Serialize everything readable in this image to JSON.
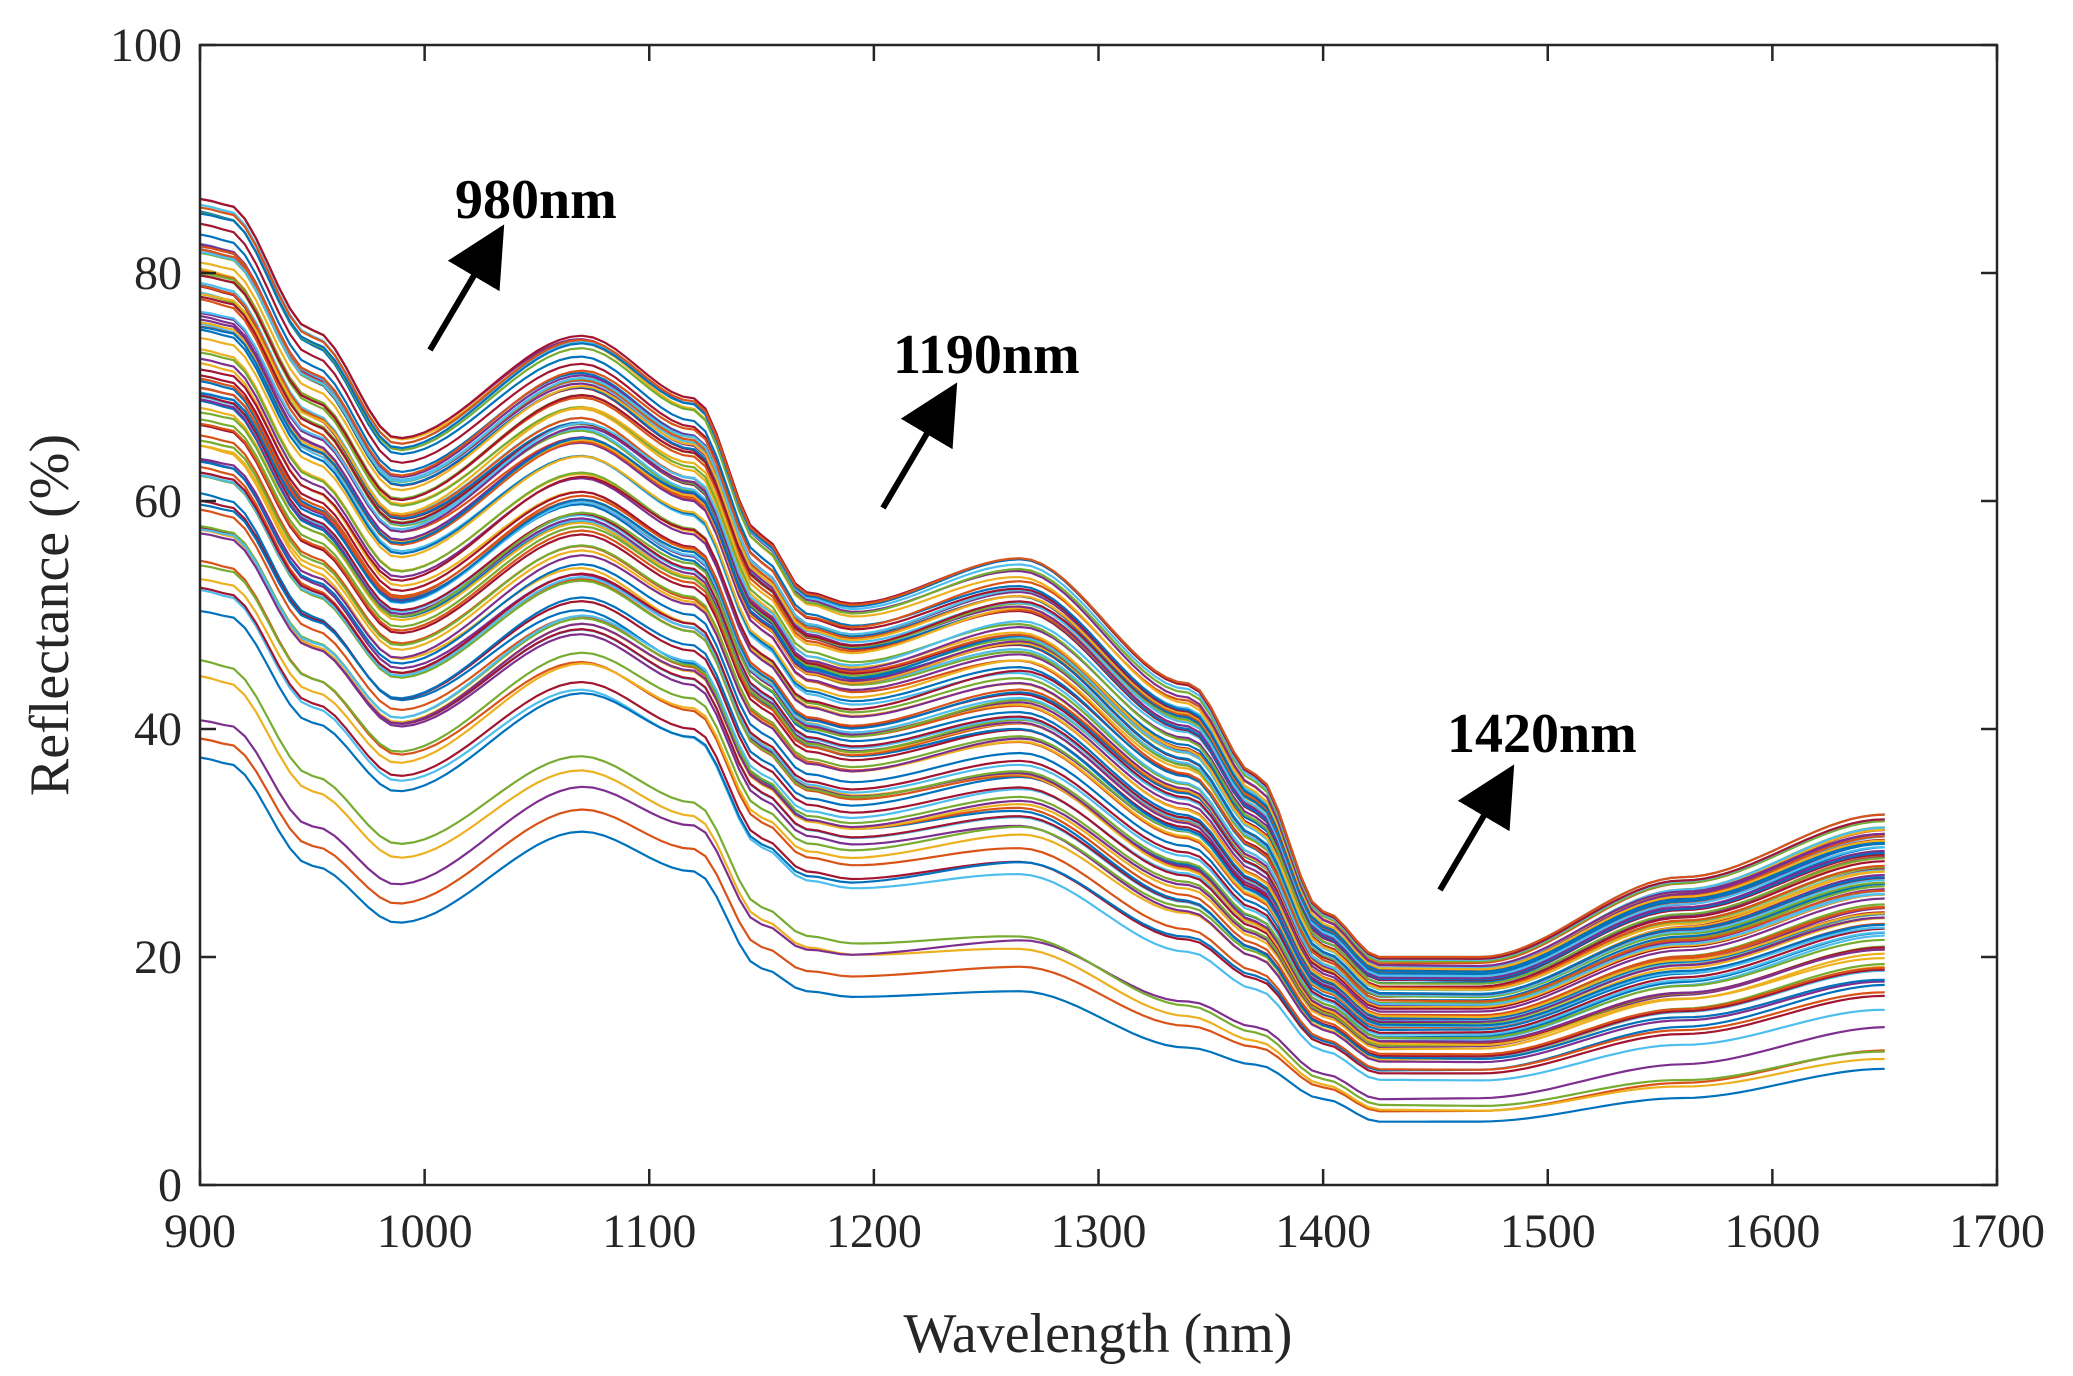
{
  "chart_data": {
    "type": "line",
    "title": "",
    "xlabel": "Wavelength (nm)",
    "ylabel": "Reflectance (%)",
    "xlim": [
      900,
      1700
    ],
    "ylim": [
      0,
      100
    ],
    "xticks": [
      900,
      1000,
      1100,
      1200,
      1300,
      1400,
      1500,
      1600,
      1700
    ],
    "yticks": [
      0,
      20,
      40,
      60,
      80,
      100
    ],
    "grid": false,
    "legend": "none",
    "n_spectra": 100,
    "x": [
      900,
      912,
      950,
      988,
      1070,
      1120,
      1150,
      1170,
      1190,
      1265,
      1340,
      1370,
      1400,
      1425,
      1470,
      1560,
      1650
    ],
    "series_upper_envelope": {
      "name": "highest spectrum",
      "values": [
        86.5,
        86.0,
        75.0,
        65.5,
        74.5,
        69.0,
        57.0,
        52.0,
        51.0,
        55.0,
        44.0,
        36.0,
        24.0,
        20.0,
        20.0,
        27.0,
        32.5
      ]
    },
    "series_lower_envelope": {
      "name": "lowest spectrum",
      "values": [
        37.5,
        37.0,
        28.0,
        23.0,
        31.0,
        27.5,
        19.0,
        17.0,
        16.5,
        17.0,
        12.0,
        10.5,
        7.5,
        5.5,
        5.5,
        7.5,
        10.0
      ]
    },
    "annotations": [
      {
        "text": "980nm",
        "x": 980
      },
      {
        "text": "1190nm",
        "x": 1190
      },
      {
        "text": "1420nm",
        "x": 1420
      }
    ],
    "line_colors": [
      "#0072BD",
      "#D95319",
      "#EDB120",
      "#7E2F8E",
      "#77AC30",
      "#4DBEEE",
      "#A2142F"
    ]
  }
}
